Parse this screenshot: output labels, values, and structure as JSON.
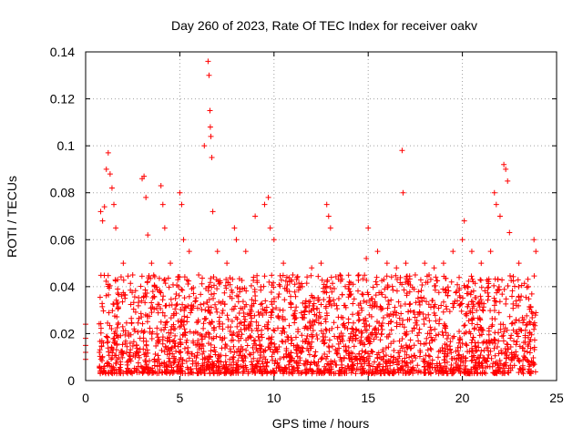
{
  "chart_data": {
    "type": "scatter",
    "title": "Day 260 of 2023, Rate Of TEC Index for receiver oakv",
    "xlabel": "GPS time / hours",
    "ylabel": "ROTI / TECUs",
    "xlim": [
      0,
      25
    ],
    "ylim": [
      0,
      0.14
    ],
    "x_ticks": [
      "0",
      "5",
      "10",
      "15",
      "20",
      "25"
    ],
    "x_tick_values": [
      0,
      5,
      10,
      15,
      20,
      25
    ],
    "y_ticks": [
      "0",
      "0.02",
      "0.04",
      "0.06",
      "0.08",
      "0.1",
      "0.12",
      "0.14"
    ],
    "y_tick_values": [
      0,
      0.02,
      0.04,
      0.06,
      0.08,
      0.1,
      0.12,
      0.14
    ],
    "grid": true,
    "marker": "+",
    "marker_color": "#ff0000",
    "series": [
      {
        "name": "ROTI",
        "x": [
          0.0,
          0.0,
          0.0,
          0.0,
          0.0,
          0.8,
          0.9,
          1.0,
          1.1,
          1.2,
          1.3,
          1.4,
          1.5,
          1.6,
          2.0,
          2.5,
          3.0,
          3.1,
          3.2,
          3.3,
          3.5,
          4.0,
          4.1,
          4.2,
          4.5,
          5.0,
          5.1,
          5.2,
          5.5,
          6.0,
          6.3,
          6.5,
          6.55,
          6.6,
          6.62,
          6.65,
          6.7,
          6.75,
          7.0,
          7.5,
          7.9,
          8.0,
          8.5,
          9.0,
          9.5,
          9.7,
          9.8,
          10.0,
          10.5,
          11.0,
          11.5,
          12.0,
          12.5,
          12.8,
          12.9,
          13.0,
          13.5,
          14.0,
          14.5,
          14.9,
          15.0,
          15.5,
          16.0,
          16.5,
          16.8,
          16.85,
          17.0,
          17.5,
          18.0,
          18.5,
          19.0,
          19.5,
          20.0,
          20.1,
          20.5,
          21.0,
          21.5,
          21.7,
          21.8,
          22.0,
          22.2,
          22.3,
          22.4,
          22.5,
          23.0,
          23.5,
          23.8,
          23.9
        ],
        "y": [
          0.024,
          0.018,
          0.015,
          0.012,
          0.009,
          0.072,
          0.068,
          0.074,
          0.09,
          0.097,
          0.088,
          0.082,
          0.075,
          0.065,
          0.05,
          0.045,
          0.086,
          0.087,
          0.078,
          0.062,
          0.05,
          0.083,
          0.075,
          0.065,
          0.05,
          0.08,
          0.075,
          0.06,
          0.055,
          0.045,
          0.1,
          0.136,
          0.13,
          0.115,
          0.108,
          0.104,
          0.095,
          0.072,
          0.055,
          0.05,
          0.065,
          0.06,
          0.055,
          0.07,
          0.075,
          0.078,
          0.065,
          0.06,
          0.05,
          0.045,
          0.04,
          0.048,
          0.05,
          0.075,
          0.07,
          0.065,
          0.045,
          0.042,
          0.045,
          0.052,
          0.065,
          0.055,
          0.05,
          0.048,
          0.098,
          0.08,
          0.05,
          0.045,
          0.05,
          0.048,
          0.05,
          0.055,
          0.06,
          0.068,
          0.055,
          0.05,
          0.055,
          0.08,
          0.075,
          0.07,
          0.092,
          0.09,
          0.085,
          0.063,
          0.05,
          0.04,
          0.06,
          0.055
        ]
      }
    ],
    "bulk_band": {
      "description_values": "dense noise floor of ROTI samples",
      "x_start": 0.7,
      "x_end": 23.9,
      "y_min": 0.003,
      "y_max": 0.045
    }
  }
}
